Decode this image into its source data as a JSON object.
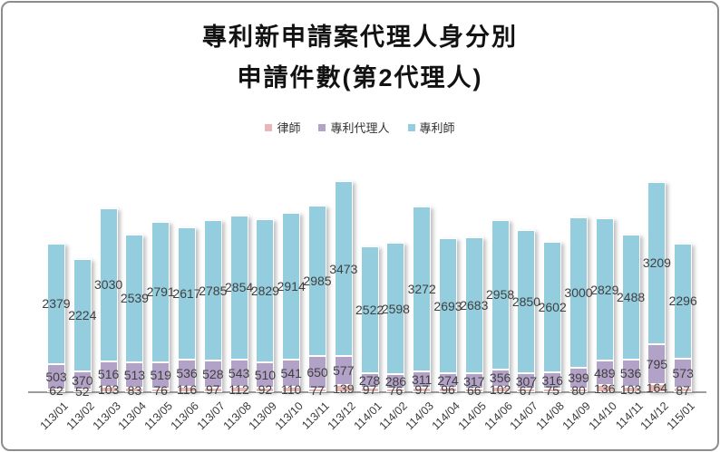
{
  "title": {
    "line1": "專利新申請案代理人身分別",
    "line2": "申請件數(第2代理人)"
  },
  "legend": {
    "items": [
      {
        "label": "律師",
        "color": "#e6b9b8"
      },
      {
        "label": "專利代理人",
        "color": "#b3a2c7"
      },
      {
        "label": "專利師",
        "color": "#93cdde"
      }
    ]
  },
  "chart_data": {
    "type": "bar",
    "stacked": true,
    "title": "專利新申請案代理人身分別 申請件數(第2代理人)",
    "xlabel": "",
    "ylabel": "",
    "ylim": [
      0,
      4500
    ],
    "grid": false,
    "legend_position": "top",
    "data_labels": "center",
    "categories": [
      "113/01",
      "113/02",
      "113/03",
      "113/04",
      "113/05",
      "113/06",
      "113/07",
      "113/08",
      "113/09",
      "113/10",
      "113/11",
      "113/12",
      "114/01",
      "114/02",
      "114/03",
      "114/04",
      "114/05",
      "114/06",
      "114/07",
      "114/08",
      "114/09",
      "114/10",
      "114/11",
      "114/12",
      "115/01"
    ],
    "series": [
      {
        "name": "律師",
        "key": "lawyer",
        "color": "#e6b9b8",
        "values": [
          62,
          52,
          103,
          83,
          76,
          116,
          97,
          112,
          92,
          110,
          77,
          139,
          97,
          76,
          97,
          96,
          66,
          102,
          67,
          75,
          80,
          136,
          103,
          164,
          87
        ]
      },
      {
        "name": "專利代理人",
        "key": "patent-agent",
        "color": "#b3a2c7",
        "values": [
          503,
          370,
          516,
          513,
          519,
          536,
          528,
          543,
          510,
          541,
          650,
          577,
          278,
          286,
          311,
          274,
          317,
          356,
          307,
          316,
          399,
          489,
          536,
          795,
          573
        ]
      },
      {
        "name": "專利師",
        "key": "patent-attorney",
        "color": "#93cdde",
        "values": [
          2379,
          2224,
          3030,
          2539,
          2791,
          2617,
          2785,
          2854,
          2829,
          2914,
          2985,
          3473,
          2522,
          2598,
          3272,
          2693,
          2683,
          2958,
          2850,
          2602,
          3000,
          2829,
          2488,
          3209,
          2296
        ]
      }
    ]
  }
}
